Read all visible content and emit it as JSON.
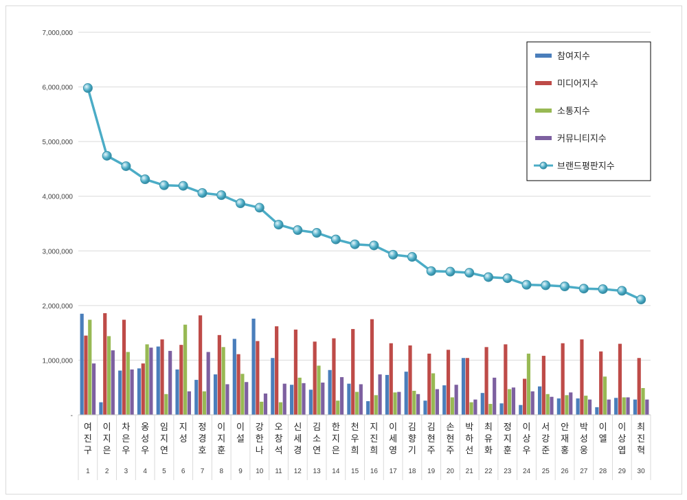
{
  "chart_data": {
    "type": "bar",
    "categories": [
      "여진구",
      "이지은",
      "차은우",
      "옹성우",
      "임지연",
      "지성",
      "정경호",
      "이지훈",
      "이설",
      "강한나",
      "오창석",
      "신세경",
      "김소연",
      "한지은",
      "천우희",
      "지진희",
      "이세영",
      "김향기",
      "김현주",
      "손현주",
      "박하선",
      "최유화",
      "정지훈",
      "이상우",
      "서강준",
      "안재홍",
      "박성웅",
      "이엘",
      "이상엽",
      "최진혁"
    ],
    "ranks": [
      "1",
      "2",
      "3",
      "4",
      "5",
      "6",
      "7",
      "8",
      "9",
      "10",
      "11",
      "12",
      "13",
      "14",
      "15",
      "16",
      "17",
      "18",
      "19",
      "20",
      "21",
      "22",
      "23",
      "24",
      "25",
      "26",
      "27",
      "28",
      "29",
      "30"
    ],
    "yticks": [
      "-",
      "1,000,000",
      "2,000,000",
      "3,000,000",
      "4,000,000",
      "5,000,000",
      "6,000,000",
      "7,000,000"
    ],
    "ylim": [
      0,
      7000000
    ],
    "grid": true,
    "legend_position": "top-right",
    "series": [
      {
        "name": "참여지수",
        "type": "bar",
        "color": "#4a7ebb",
        "values": [
          1850000,
          230000,
          810000,
          850000,
          1250000,
          830000,
          640000,
          740000,
          1390000,
          1760000,
          1040000,
          550000,
          460000,
          820000,
          570000,
          250000,
          730000,
          790000,
          260000,
          540000,
          1040000,
          400000,
          210000,
          180000,
          520000,
          300000,
          300000,
          140000,
          310000,
          280000
        ]
      },
      {
        "name": "미디어지수",
        "type": "bar",
        "color": "#be4b48",
        "values": [
          1450000,
          1860000,
          1740000,
          940000,
          1380000,
          1280000,
          1820000,
          1460000,
          1110000,
          1350000,
          1620000,
          1560000,
          1340000,
          1400000,
          1570000,
          1750000,
          1310000,
          1270000,
          1120000,
          1190000,
          1040000,
          1240000,
          1290000,
          660000,
          1080000,
          1310000,
          1380000,
          1160000,
          1300000,
          1040000
        ]
      },
      {
        "name": "소통지수",
        "type": "bar",
        "color": "#98b954",
        "values": [
          1740000,
          1440000,
          1150000,
          1290000,
          380000,
          1650000,
          430000,
          1240000,
          750000,
          240000,
          230000,
          680000,
          900000,
          260000,
          420000,
          360000,
          410000,
          440000,
          760000,
          320000,
          230000,
          200000,
          470000,
          1120000,
          380000,
          360000,
          350000,
          700000,
          320000,
          490000
        ]
      },
      {
        "name": "커뮤니티지수",
        "type": "bar",
        "color": "#7d60a0",
        "values": [
          940000,
          1180000,
          830000,
          1230000,
          1170000,
          430000,
          1150000,
          560000,
          600000,
          390000,
          570000,
          580000,
          590000,
          690000,
          560000,
          740000,
          420000,
          380000,
          470000,
          550000,
          280000,
          680000,
          500000,
          430000,
          330000,
          410000,
          280000,
          280000,
          320000,
          280000
        ]
      },
      {
        "name": "브랜드평판지수",
        "type": "line",
        "color": "#4bacc6",
        "values": [
          5980000,
          4740000,
          4550000,
          4310000,
          4200000,
          4190000,
          4060000,
          4020000,
          3870000,
          3790000,
          3480000,
          3380000,
          3330000,
          3210000,
          3120000,
          3100000,
          2930000,
          2890000,
          2630000,
          2620000,
          2600000,
          2520000,
          2500000,
          2380000,
          2370000,
          2350000,
          2310000,
          2300000,
          2270000,
          2110000
        ]
      }
    ]
  }
}
